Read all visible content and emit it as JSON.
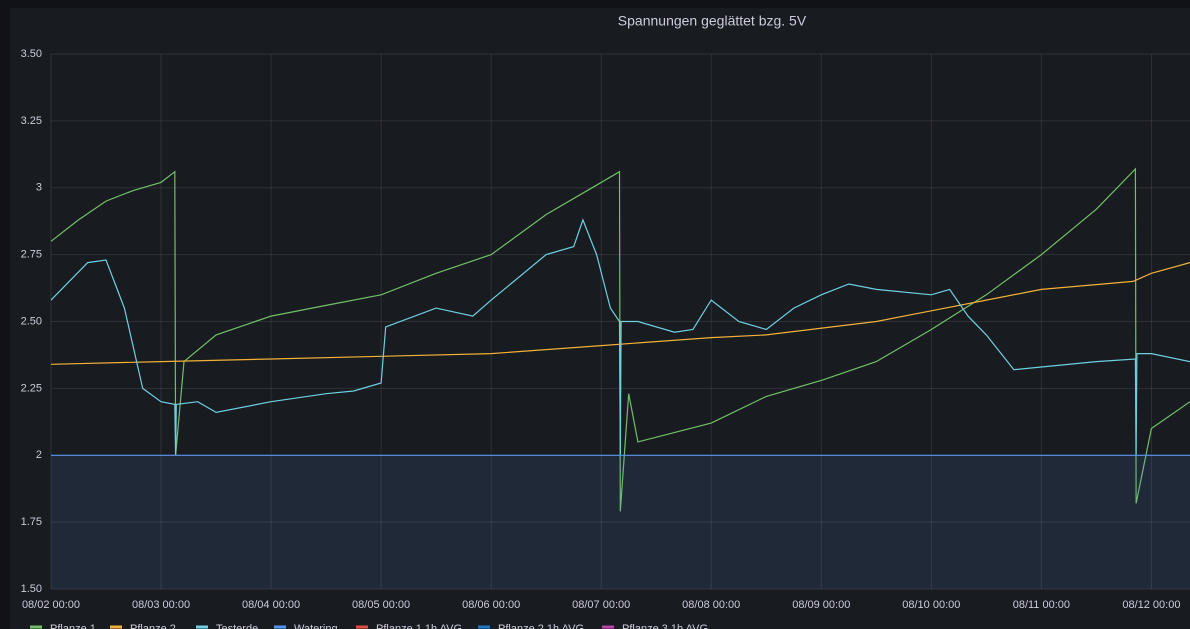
{
  "chart_data": {
    "type": "line",
    "title": "Spannungen geglättet bzg. 5V",
    "xlim": [
      "08/02 00:00",
      "08/12 08:25"
    ],
    "xticks": [
      "08/02 00:00",
      "08/03 00:00",
      "08/04 00:00",
      "08/05 00:00",
      "08/06 00:00",
      "08/07 00:00",
      "08/08 00:00",
      "08/09 00:00",
      "08/10 00:00",
      "08/11 00:00",
      "08/12 00:00"
    ],
    "ylim": [
      1.5,
      3.5
    ],
    "yticks": [
      {
        "value": 1.5,
        "label": "1.50"
      },
      1.75,
      2,
      2.25,
      {
        "value": 2.5,
        "label": "2.50"
      },
      2.75,
      3,
      3.25,
      {
        "value": 3.5,
        "label": "3.50"
      }
    ],
    "grid": true,
    "series": [
      {
        "name": "Pflanze 1",
        "color": "#73bf69",
        "x": [
          "08/02 00:00",
          "08/02 06:00",
          "08/02 12:00",
          "08/02 18:00",
          "08/03 00:00",
          "08/03 03:00",
          "08/03 03:10",
          "08/03 05:00",
          "08/03 12:00",
          "08/04 00:00",
          "08/04 12:00",
          "08/05 00:00",
          "08/05 12:00",
          "08/06 00:00",
          "08/06 12:00",
          "08/06 22:00",
          "08/07 04:00",
          "08/07 04:10",
          "08/07 06:00",
          "08/07 08:00",
          "08/08 00:00",
          "08/08 12:00",
          "08/09 00:00",
          "08/09 12:00",
          "08/10 00:00",
          "08/10 12:00",
          "08/11 00:00",
          "08/11 12:00",
          "08/11 20:30",
          "08/11 20:40",
          "08/12 00:00",
          "08/12 08:25"
        ],
        "values": [
          2.8,
          2.88,
          2.95,
          2.99,
          3.02,
          3.06,
          2.0,
          2.35,
          2.45,
          2.52,
          2.56,
          2.6,
          2.68,
          2.75,
          2.9,
          3.0,
          3.06,
          1.79,
          2.23,
          2.05,
          2.12,
          2.22,
          2.28,
          2.35,
          2.47,
          2.6,
          2.75,
          2.92,
          3.07,
          1.82,
          2.1,
          2.2
        ]
      },
      {
        "name": "Pflanze 2",
        "color": "#f2b13a",
        "x": [
          "08/02 00:00",
          "08/03 00:00",
          "08/04 00:00",
          "08/05 00:00",
          "08/06 00:00",
          "08/07 00:00",
          "08/08 00:00",
          "08/08 12:00",
          "08/09 12:00",
          "08/10 00:00",
          "08/10 12:00",
          "08/11 00:00",
          "08/11 20:00",
          "08/12 00:00",
          "08/12 08:25"
        ],
        "values": [
          2.34,
          2.35,
          2.36,
          2.37,
          2.38,
          2.41,
          2.44,
          2.45,
          2.5,
          2.54,
          2.58,
          2.62,
          2.65,
          2.68,
          2.72
        ]
      },
      {
        "name": "Testerde",
        "color": "#6ed0e0",
        "x": [
          "08/02 00:00",
          "08/02 08:00",
          "08/02 12:00",
          "08/02 16:00",
          "08/02 20:00",
          "08/03 00:00",
          "08/03 03:00",
          "08/03 03:10",
          "08/03 03:20",
          "08/03 08:00",
          "08/03 12:00",
          "08/04 00:00",
          "08/04 12:00",
          "08/04 18:00",
          "08/05 00:00",
          "08/05 01:00",
          "08/05 12:00",
          "08/05 20:00",
          "08/06 00:00",
          "08/06 12:00",
          "08/06 18:00",
          "08/06 20:00",
          "08/06 23:00",
          "08/07 02:00",
          "08/07 04:00",
          "08/07 04:10",
          "08/07 04:20",
          "08/07 08:00",
          "08/07 16:00",
          "08/07 20:00",
          "08/08 00:00",
          "08/08 06:00",
          "08/08 12:00",
          "08/08 18:00",
          "08/09 00:00",
          "08/09 06:00",
          "08/09 12:00",
          "08/10 00:00",
          "08/10 04:00",
          "08/10 08:00",
          "08/10 12:00",
          "08/10 18:00",
          "08/11 00:00",
          "08/11 12:00",
          "08/11 20:30",
          "08/11 20:40",
          "08/11 20:50",
          "08/12 00:00",
          "08/12 08:25"
        ],
        "values": [
          2.58,
          2.72,
          2.73,
          2.55,
          2.25,
          2.2,
          2.19,
          2.0,
          2.19,
          2.2,
          2.16,
          2.2,
          2.23,
          2.24,
          2.27,
          2.48,
          2.55,
          2.52,
          2.58,
          2.75,
          2.78,
          2.88,
          2.75,
          2.55,
          2.5,
          2.0,
          2.5,
          2.5,
          2.46,
          2.47,
          2.58,
          2.5,
          2.47,
          2.55,
          2.6,
          2.64,
          2.62,
          2.6,
          2.62,
          2.52,
          2.45,
          2.32,
          2.33,
          2.35,
          2.36,
          2.0,
          2.38,
          2.38,
          2.35
        ]
      },
      {
        "name": "Watering",
        "color": "#5794f2",
        "x": [
          "08/02 00:00",
          "08/12 08:25"
        ],
        "values": [
          2,
          2
        ]
      },
      {
        "name": "Pflanze 1 1h AVG",
        "color": "#e24d42",
        "x": [],
        "values": []
      },
      {
        "name": "Pflanze 2 1h AVG",
        "color": "#1f78c1",
        "x": [],
        "values": []
      },
      {
        "name": "Pflanze 3 1h AVG",
        "color": "#ba43a9",
        "x": [],
        "values": []
      }
    ]
  }
}
